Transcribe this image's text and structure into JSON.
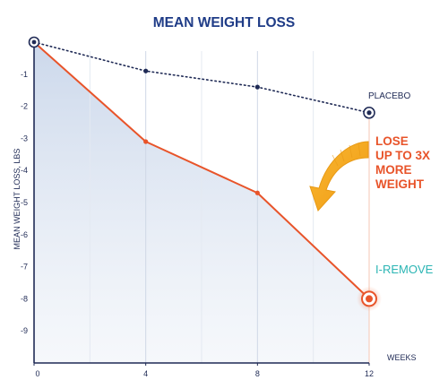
{
  "chart_data": {
    "type": "line",
    "title": "MEAN WEIGHT LOSS",
    "xlabel": "WEEKS",
    "ylabel": "MEAN WEIGHT LOSS, LBS",
    "x": [
      0,
      4,
      8,
      12
    ],
    "x_ticks": [
      "0",
      "4",
      "8",
      "12"
    ],
    "y_ticks": [
      "-1",
      "-2",
      "-3",
      "-4",
      "-5",
      "-6",
      "-7",
      "-8",
      "-9"
    ],
    "xlim": [
      0,
      12
    ],
    "ylim": [
      -10,
      0
    ],
    "grid": "vertical",
    "series": [
      {
        "name": "PLACEBO",
        "values": [
          0,
          -0.9,
          -1.4,
          -2.2
        ],
        "style": "dotted",
        "color": "#1f2a55"
      },
      {
        "name": "I-REMOVE",
        "values": [
          0,
          -3.1,
          -4.7,
          -8.0
        ],
        "style": "solid",
        "color": "#e8542a",
        "fill": "#dfe6f1"
      }
    ],
    "annotation": [
      "LOSE",
      "UP TO 3X",
      "MORE",
      "WEIGHT"
    ]
  },
  "colors": {
    "title": "#1f3c87",
    "axis": "#1f2a55",
    "accent": "#e8542a",
    "arrow_gold": "#f4a623",
    "brand": "#2bb5b4"
  },
  "icons": [
    "curved-arrow-icon",
    "end-marker-icon"
  ]
}
